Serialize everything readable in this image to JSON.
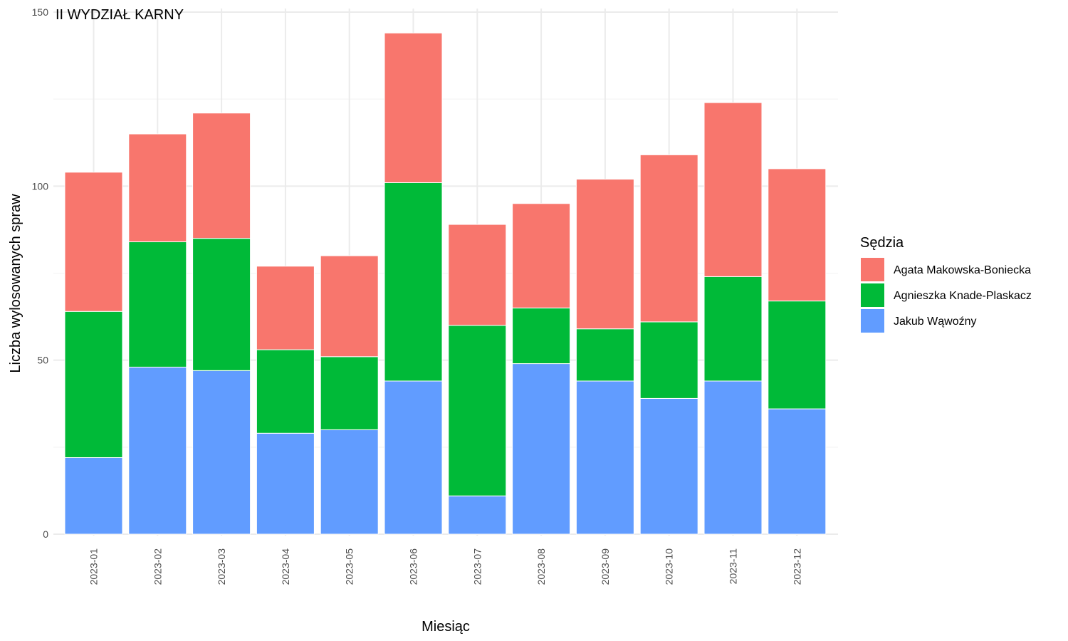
{
  "chart_data": {
    "type": "bar",
    "stacked": true,
    "title": "II WYDZIAŁ KARNY",
    "xlabel": "Miesiąc",
    "ylabel": "Liczba wylosowanych spraw",
    "ylim": [
      0,
      150
    ],
    "yticks": [
      "0",
      "50",
      "100",
      "150"
    ],
    "grid": true,
    "legend_position": "right",
    "legend_title": "Sędzia",
    "categories": [
      "2023-01",
      "2023-02",
      "2023-03",
      "2023-04",
      "2023-05",
      "2023-06",
      "2023-07",
      "2023-08",
      "2023-09",
      "2023-10",
      "2023-11",
      "2023-12"
    ],
    "series": [
      {
        "name": "Jakub Wąwoźny",
        "color": "#619CFF",
        "values": [
          22,
          48,
          47,
          29,
          30,
          44,
          11,
          49,
          44,
          39,
          44,
          36
        ]
      },
      {
        "name": "Agnieszka Knade-Plaskacz",
        "color": "#00BA38",
        "values": [
          42,
          36,
          38,
          24,
          21,
          57,
          49,
          16,
          15,
          22,
          30,
          31
        ]
      },
      {
        "name": "Agata Makowska-Boniecka",
        "color": "#F8766D",
        "values": [
          40,
          31,
          36,
          24,
          29,
          43,
          29,
          30,
          43,
          48,
          50,
          38
        ]
      }
    ],
    "legend_order": [
      "Agata Makowska-Boniecka",
      "Agnieszka Knade-Plaskacz",
      "Jakub Wąwoźny"
    ]
  }
}
